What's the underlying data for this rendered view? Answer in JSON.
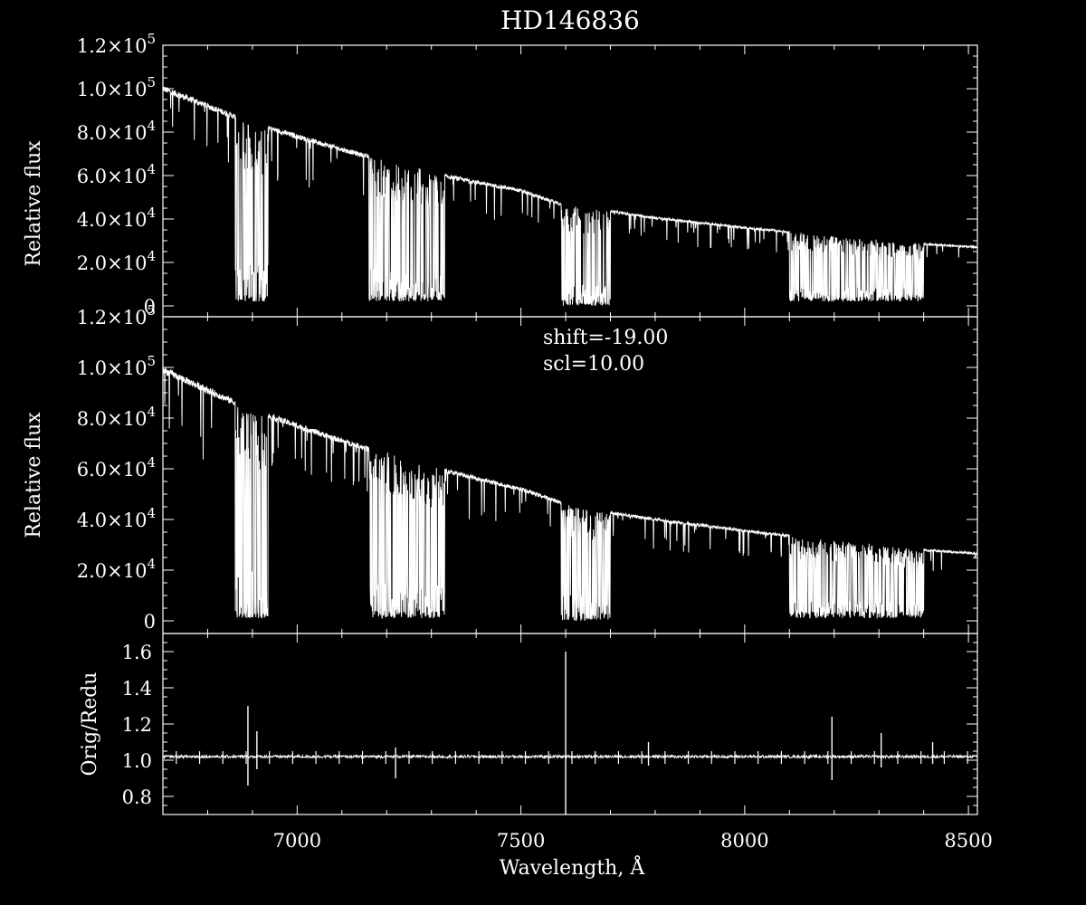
{
  "chart_data": [
    {
      "panel": "top",
      "type": "line",
      "title": "HD146836",
      "ylabel": "Relative flux",
      "xlim": [
        6700,
        8520
      ],
      "ylim": [
        -5000,
        120000
      ],
      "y_ticks": [
        {
          "value": 120000,
          "mantissa": "1.2",
          "exp": "5"
        },
        {
          "value": 100000,
          "mantissa": "1.0",
          "exp": "5"
        },
        {
          "value": 80000,
          "mantissa": "8.0",
          "exp": "4"
        },
        {
          "value": 60000,
          "mantissa": "6.0",
          "exp": "4"
        },
        {
          "value": 40000,
          "mantissa": "4.0",
          "exp": "4"
        },
        {
          "value": 20000,
          "mantissa": "2.0",
          "exp": "4"
        },
        {
          "value": 0,
          "mantissa": "0",
          "exp": ""
        }
      ],
      "continuum": [
        [
          6700,
          100000
        ],
        [
          6900,
          84000
        ],
        [
          7100,
          72000
        ],
        [
          7300,
          61000
        ],
        [
          7500,
          53000
        ],
        [
          7600,
          46000
        ],
        [
          7650,
          45000
        ],
        [
          7800,
          40500
        ],
        [
          8000,
          36000
        ],
        [
          8200,
          32000
        ],
        [
          8400,
          28500
        ],
        [
          8520,
          27000
        ]
      ],
      "absorption_bands": [
        {
          "start": 6862,
          "end": 6935,
          "min_flux": 2000
        },
        {
          "start": 7160,
          "end": 7330,
          "min_flux": 2000
        },
        {
          "start": 7590,
          "end": 7700,
          "min_flux": 0
        },
        {
          "start": 8100,
          "end": 8400,
          "min_flux": 2000
        }
      ],
      "grid": false
    },
    {
      "panel": "middle",
      "type": "line",
      "ylabel": "Relative flux",
      "xlim": [
        6700,
        8520
      ],
      "ylim": [
        -5000,
        120000
      ],
      "annotations": [
        "shift=-19.00",
        "scl=10.00"
      ],
      "y_ticks": [
        {
          "value": 120000,
          "mantissa": "1.2",
          "exp": "5"
        },
        {
          "value": 100000,
          "mantissa": "1.0",
          "exp": "5"
        },
        {
          "value": 80000,
          "mantissa": "8.0",
          "exp": "4"
        },
        {
          "value": 60000,
          "mantissa": "6.0",
          "exp": "4"
        },
        {
          "value": 40000,
          "mantissa": "4.0",
          "exp": "4"
        },
        {
          "value": 20000,
          "mantissa": "2.0",
          "exp": "4"
        },
        {
          "value": 0,
          "mantissa": "0",
          "exp": ""
        }
      ],
      "continuum": [
        [
          6700,
          99000
        ],
        [
          6900,
          83000
        ],
        [
          7100,
          71000
        ],
        [
          7300,
          60500
        ],
        [
          7500,
          52000
        ],
        [
          7600,
          46000
        ],
        [
          7650,
          44000
        ],
        [
          7800,
          40000
        ],
        [
          8000,
          35500
        ],
        [
          8200,
          31500
        ],
        [
          8400,
          28000
        ],
        [
          8520,
          26500
        ]
      ],
      "absorption_bands": [
        {
          "start": 6862,
          "end": 6935,
          "min_flux": 1000
        },
        {
          "start": 7160,
          "end": 7330,
          "min_flux": 1000
        },
        {
          "start": 7590,
          "end": 7700,
          "min_flux": 0
        },
        {
          "start": 8100,
          "end": 8400,
          "min_flux": 1000
        }
      ],
      "grid": false
    },
    {
      "panel": "bottom",
      "type": "line",
      "ylabel": "Orig/Redu",
      "xlabel": "Wavelength, Å",
      "xlim": [
        6700,
        8520
      ],
      "ylim": [
        0.7,
        1.7
      ],
      "x_ticks": [
        7000,
        7500,
        8000,
        8500
      ],
      "x_tick_labels": [
        "7000",
        "7500",
        "8000",
        "8500"
      ],
      "y_ticks": [
        0.8,
        1.0,
        1.2,
        1.4,
        1.6
      ],
      "y_tick_labels": [
        "0.8",
        "1.0",
        "1.2",
        "1.4",
        "1.6"
      ],
      "baseline": 1.0,
      "spikes": [
        {
          "x": 6890,
          "high": 1.3,
          "low": 0.86
        },
        {
          "x": 6910,
          "high": 1.16,
          "low": 0.95
        },
        {
          "x": 7220,
          "high": 1.07,
          "low": 0.9
        },
        {
          "x": 7600,
          "high": 1.6,
          "low": 0.7
        },
        {
          "x": 7785,
          "high": 1.1,
          "low": 0.97
        },
        {
          "x": 8195,
          "high": 1.24,
          "low": 0.89
        },
        {
          "x": 8305,
          "high": 1.15,
          "low": 0.96
        },
        {
          "x": 8420,
          "high": 1.1,
          "low": 0.98
        }
      ],
      "grid": false
    }
  ]
}
